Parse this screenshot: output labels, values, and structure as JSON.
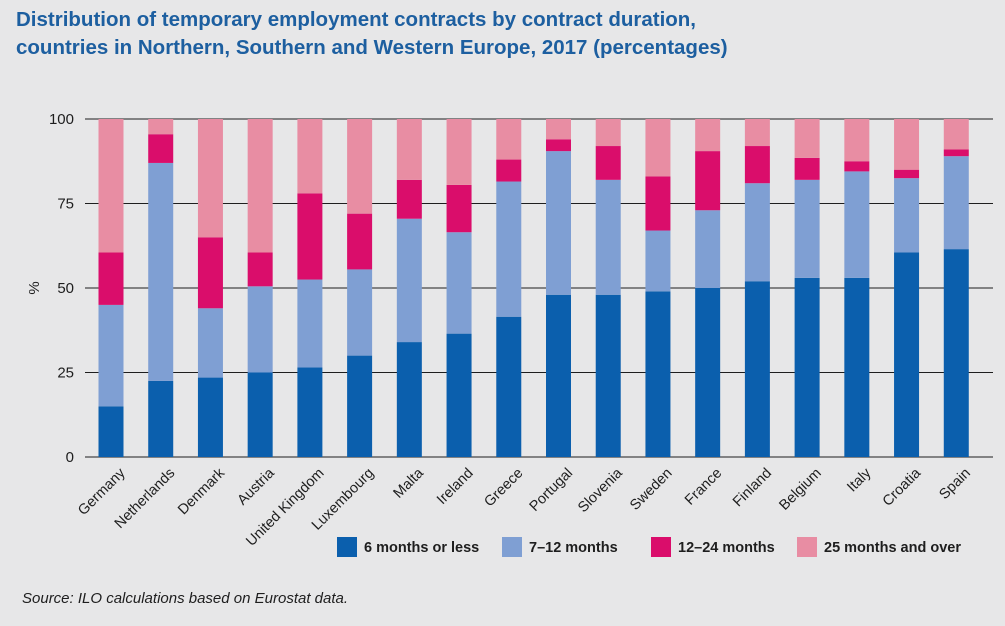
{
  "title_line1": "Distribution of temporary employment contracts by contract duration,",
  "title_line2": "countries in Northern, Southern and Western Europe, 2017 (percentages)",
  "source": "Source: ILO calculations based on Eurostat data.",
  "colors": {
    "background": "#e7e7e8",
    "title": "#1d5fa0",
    "series": [
      "#0b5fad",
      "#7f9fd3",
      "#da0d6b",
      "#e88da3"
    ]
  },
  "chart_data": {
    "type": "bar",
    "stacked": true,
    "title": "Distribution of temporary employment contracts by contract duration, countries in Northern, Southern and Western Europe, 2017 (percentages)",
    "xlabel": "",
    "ylabel": "%",
    "ylim": [
      0,
      100
    ],
    "yticks": [
      0,
      25,
      50,
      75,
      100
    ],
    "grid": "horizontal",
    "legend_position": "bottom-right",
    "categories": [
      "Germany",
      "Netherlands",
      "Denmark",
      "Austria",
      "United Kingdom",
      "Luxembourg",
      "Malta",
      "Ireland",
      "Greece",
      "Portugal",
      "Slovenia",
      "Sweden",
      "France",
      "Finland",
      "Belgium",
      "Italy",
      "Croatia",
      "Spain"
    ],
    "series": [
      {
        "name": "6 months or less",
        "values": [
          15,
          22.5,
          23.5,
          25,
          26.5,
          30,
          34,
          36.5,
          41.5,
          48,
          48,
          49,
          50,
          52,
          53,
          53,
          60.5,
          61.5
        ]
      },
      {
        "name": "7–12 months",
        "values": [
          30,
          64.5,
          20.5,
          25.5,
          26,
          25.5,
          36.5,
          30,
          40,
          42.5,
          34,
          18,
          23,
          29,
          29,
          31.5,
          22,
          27.5
        ]
      },
      {
        "name": "12–24 months",
        "values": [
          15.5,
          8.5,
          21,
          10,
          25.5,
          16.5,
          11.5,
          14,
          6.5,
          3.5,
          10,
          16,
          17.5,
          11,
          6.5,
          3,
          2.5,
          2
        ]
      },
      {
        "name": "25 months and over",
        "values": [
          39.5,
          4.5,
          35,
          39.5,
          22,
          28,
          18,
          19.5,
          12,
          6,
          8,
          17,
          9.5,
          8,
          11.5,
          12.5,
          15,
          9
        ]
      }
    ]
  }
}
